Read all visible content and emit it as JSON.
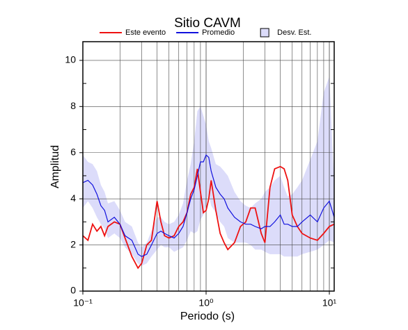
{
  "chart_data": {
    "type": "line",
    "title": "Sitio CAVM",
    "x_label": "Periodo (s)",
    "y_label": "Amplitud",
    "log_x": true,
    "grid": true,
    "xlim": [
      0.1,
      10.95
    ],
    "ylim": [
      0,
      10.81
    ],
    "xticks": [
      {
        "value": 0.1,
        "label": "10⁻¹"
      },
      {
        "value": 1,
        "label": "10⁰"
      },
      {
        "value": 10,
        "label": "10¹"
      }
    ],
    "xminorticks": [
      0.2,
      0.3,
      0.4,
      0.5,
      0.6,
      0.7,
      0.8,
      0.9,
      2,
      3,
      4,
      5,
      6,
      7,
      8,
      9
    ],
    "yticks": [
      0,
      2,
      4,
      6,
      8,
      10
    ],
    "yminorticks": [
      1,
      3,
      5,
      7,
      9
    ],
    "x": [
      0.1,
      0.11,
      0.12,
      0.13,
      0.14,
      0.15,
      0.16,
      0.18,
      0.2,
      0.22,
      0.25,
      0.28,
      0.3,
      0.33,
      0.36,
      0.4,
      0.43,
      0.46,
      0.5,
      0.55,
      0.6,
      0.65,
      0.7,
      0.75,
      0.8,
      0.85,
      0.9,
      0.95,
      1.0,
      1.05,
      1.1,
      1.2,
      1.3,
      1.4,
      1.5,
      1.7,
      1.9,
      2.1,
      2.3,
      2.5,
      2.8,
      3.0,
      3.3,
      3.6,
      4.0,
      4.3,
      4.6,
      5.0,
      5.5,
      6,
      7,
      8,
      9,
      10,
      10.95
    ],
    "band": {
      "name": "Desv. Est.",
      "color": "#dcdcfa",
      "upper": [
        5.9,
        5.6,
        5.5,
        5.2,
        4.6,
        4.3,
        3.8,
        3.9,
        3.5,
        3.0,
        2.8,
        2.1,
        1.9,
        2.1,
        2.6,
        3.2,
        3.2,
        3.0,
        2.9,
        3.0,
        3.3,
        3.8,
        4.8,
        5.5,
        6.5,
        7.8,
        8.0,
        7.6,
        7.2,
        6.5,
        6.2,
        5.5,
        5.4,
        5.2,
        5.0,
        4.3,
        3.9,
        3.7,
        3.6,
        3.8,
        4.0,
        4.3,
        4.5,
        4.8,
        5.0,
        4.5,
        4.1,
        4.2,
        4.5,
        4.8,
        5.7,
        6.5,
        8.6,
        9.3,
        4.6
      ],
      "lower": [
        3.6,
        3.9,
        3.6,
        3.2,
        2.9,
        2.7,
        2.3,
        2.5,
        2.3,
        1.9,
        1.6,
        1.2,
        1.1,
        1.2,
        1.5,
        1.8,
        2.0,
        1.9,
        1.9,
        1.7,
        1.8,
        1.9,
        2.2,
        2.6,
        2.5,
        2.6,
        3.1,
        3.3,
        3.8,
        4.2,
        3.7,
        3.4,
        3.0,
        2.8,
        2.3,
        2.1,
        2.1,
        2.1,
        2.0,
        1.8,
        1.8,
        1.7,
        1.6,
        1.6,
        1.6,
        1.5,
        1.5,
        1.5,
        1.5,
        1.6,
        1.7,
        1.8,
        2.0,
        2.2,
        2.1
      ]
    },
    "series": [
      {
        "name": "Este evento",
        "color": "#ee1111",
        "values": [
          2.4,
          2.2,
          2.9,
          2.6,
          2.8,
          2.4,
          2.8,
          3.0,
          2.9,
          2.3,
          1.5,
          1.0,
          1.2,
          2.0,
          2.2,
          3.9,
          3.0,
          2.4,
          2.3,
          2.4,
          2.8,
          3.0,
          3.4,
          4.2,
          4.5,
          5.3,
          4.3,
          3.4,
          3.5,
          4.0,
          4.8,
          3.5,
          2.5,
          2.1,
          1.8,
          2.1,
          2.8,
          3.0,
          3.6,
          3.6,
          2.5,
          2.1,
          4.5,
          5.3,
          5.4,
          5.3,
          4.8,
          3.3,
          2.8,
          2.5,
          2.3,
          2.2,
          2.5,
          2.8,
          2.9
        ]
      },
      {
        "name": "Promedio",
        "color": "#1111dd",
        "values": [
          4.7,
          4.8,
          4.6,
          4.2,
          3.7,
          3.5,
          3.0,
          3.2,
          2.9,
          2.4,
          2.2,
          1.6,
          1.5,
          1.6,
          2.0,
          2.5,
          2.6,
          2.5,
          2.4,
          2.3,
          2.5,
          2.8,
          3.4,
          4.0,
          4.4,
          5.0,
          5.6,
          5.6,
          5.9,
          5.8,
          5.2,
          4.5,
          4.2,
          4.0,
          3.6,
          3.2,
          3.0,
          2.9,
          2.9,
          2.8,
          2.7,
          2.8,
          2.8,
          3.0,
          3.3,
          2.9,
          2.9,
          2.8,
          2.8,
          3.0,
          3.3,
          3.0,
          3.6,
          3.9,
          3.2
        ]
      }
    ]
  }
}
